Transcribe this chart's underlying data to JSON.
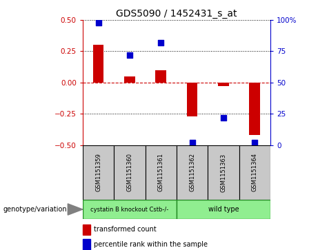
{
  "title": "GDS5090 / 1452431_s_at",
  "samples": [
    "GSM1151359",
    "GSM1151360",
    "GSM1151361",
    "GSM1151362",
    "GSM1151363",
    "GSM1151364"
  ],
  "transformed_count": [
    0.3,
    0.05,
    0.1,
    -0.27,
    -0.03,
    -0.42
  ],
  "percentile_rank": [
    98,
    72,
    82,
    2,
    22,
    2
  ],
  "ylim_left": [
    -0.5,
    0.5
  ],
  "ylim_right": [
    0,
    100
  ],
  "yticks_left": [
    -0.5,
    -0.25,
    0,
    0.25,
    0.5
  ],
  "yticks_right": [
    0,
    25,
    50,
    75,
    100
  ],
  "bar_color": "#cc0000",
  "dot_color": "#0000cc",
  "bar_width": 0.35,
  "dot_size": 30,
  "label_color_left": "#cc0000",
  "label_color_right": "#0000cc",
  "zero_line_color": "#cc0000",
  "genotype_label": "genotype/variation",
  "legend_red": "transformed count",
  "legend_blue": "percentile rank within the sample",
  "sample_box_color": "#c8c8c8",
  "group1_label": "cystatin B knockout Cstb-/-",
  "group2_label": "wild type",
  "group_box_color": "#90EE90",
  "group_edge_color": "#228B22"
}
